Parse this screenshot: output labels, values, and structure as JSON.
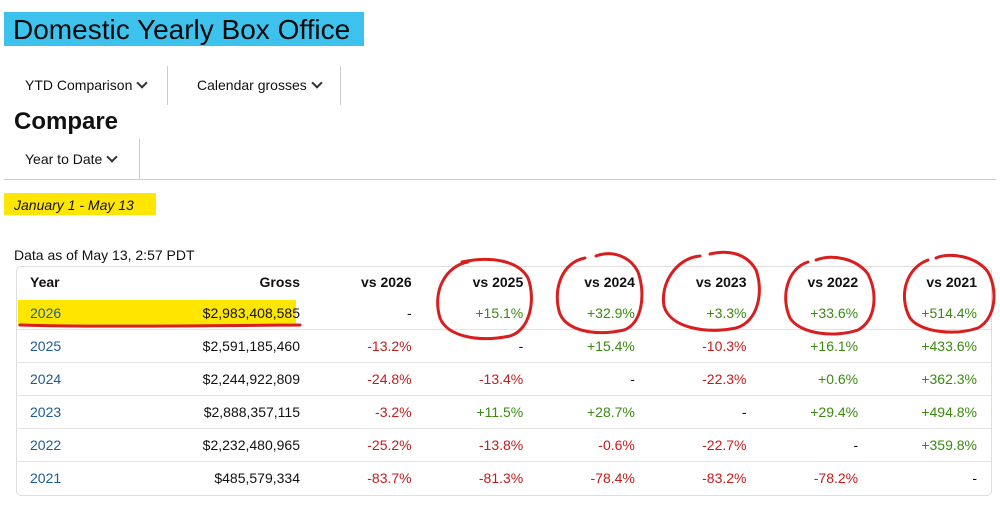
{
  "header": {
    "title": "Domestic Yearly Box Office"
  },
  "toolbar": {
    "dropdown_1": "YTD Comparison",
    "dropdown_2": "Calendar grosses"
  },
  "compare": {
    "heading": "Compare",
    "dropdown": "Year to Date",
    "date_range": "January 1 - May 13",
    "as_of": "Data as of May 13, 2:57 PDT"
  },
  "table": {
    "columns": [
      "Year",
      "Gross",
      "vs 2026",
      "vs 2025",
      "vs 2024",
      "vs 2023",
      "vs 2022",
      "vs 2021"
    ],
    "rows": [
      {
        "year": "2026",
        "gross": "$2,983,408,585",
        "vs": [
          "-",
          "+15.1%",
          "+32.9%",
          "+3.3%",
          "+33.6%",
          "+514.4%"
        ]
      },
      {
        "year": "2025",
        "gross": "$2,591,185,460",
        "vs": [
          "-13.2%",
          "-",
          "+15.4%",
          "-10.3%",
          "+16.1%",
          "+433.6%"
        ]
      },
      {
        "year": "2024",
        "gross": "$2,244,922,809",
        "vs": [
          "-24.8%",
          "-13.4%",
          "-",
          "-22.3%",
          "+0.6%",
          "+362.3%"
        ]
      },
      {
        "year": "2023",
        "gross": "$2,888,357,115",
        "vs": [
          "-3.2%",
          "+11.5%",
          "+28.7%",
          "-",
          "+29.4%",
          "+494.8%"
        ]
      },
      {
        "year": "2022",
        "gross": "$2,232,480,965",
        "vs": [
          "-25.2%",
          "-13.8%",
          "-0.6%",
          "-22.7%",
          "-",
          "+359.8%"
        ]
      },
      {
        "year": "2021",
        "gross": "$485,579,334",
        "vs": [
          "-83.7%",
          "-81.3%",
          "-78.4%",
          "-83.2%",
          "-78.2%",
          "-"
        ]
      }
    ]
  },
  "colors": {
    "title_highlight": "#3dc2ee",
    "yellow_highlight": "#ffe600",
    "positive": "#3a8a10",
    "negative": "#c41b1b",
    "year_link": "#1e5b96",
    "annotation_red": "#d81e1e"
  },
  "icons": [
    "chevron-down-icon"
  ]
}
